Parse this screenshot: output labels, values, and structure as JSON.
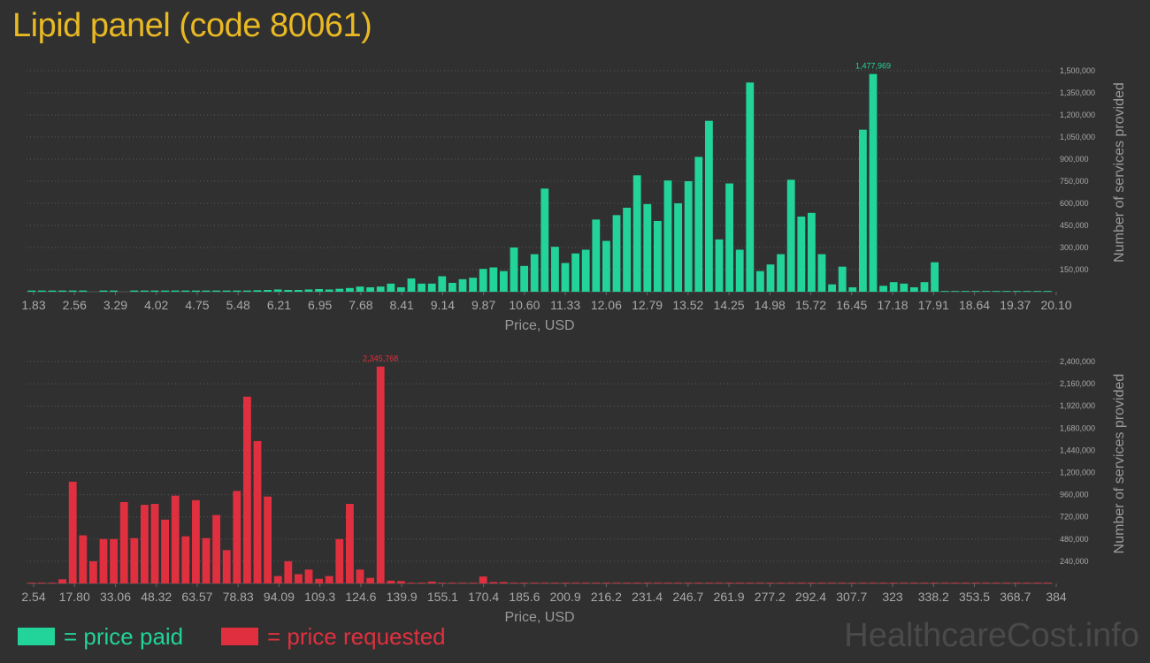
{
  "title": "Lipid panel (code 80061)",
  "brand": "HealthcareCost.info",
  "legend": [
    {
      "swatch_color": "#22d39a",
      "label": "= price paid"
    },
    {
      "swatch_color": "#e0303f",
      "label": "= price requested"
    }
  ],
  "chart_data": [
    {
      "type": "bar",
      "title": "",
      "xlabel": "Price, USD",
      "ylabel": "Number of services provided",
      "color": "#22d39a",
      "x_tick_labels": [
        "1.83",
        "2.56",
        "3.29",
        "4.02",
        "4.75",
        "5.48",
        "6.21",
        "6.95",
        "7.68",
        "8.41",
        "9.14",
        "9.87",
        "10.60",
        "11.33",
        "12.06",
        "12.79",
        "13.52",
        "14.25",
        "14.98",
        "15.72",
        "16.45",
        "17.18",
        "17.91",
        "18.64",
        "19.37",
        "20.10"
      ],
      "y_tick_labels": [
        "150,000",
        "300,000",
        "450,000",
        "600,000",
        "750,000",
        "900,000",
        "1,050,000",
        "1,200,000",
        "1,350,000",
        "1,500,000"
      ],
      "y_ticks": [
        150000,
        300000,
        450000,
        600000,
        750000,
        900000,
        1050000,
        1200000,
        1350000,
        1500000
      ],
      "ylim": [
        0,
        1500000
      ],
      "max_label": "1,477,969",
      "values": [
        8000,
        8000,
        8000,
        8000,
        8000,
        8000,
        0,
        8000,
        8000,
        0,
        8000,
        8000,
        8000,
        8000,
        8000,
        8000,
        8000,
        8000,
        8000,
        8000,
        8000,
        8000,
        10000,
        12000,
        15000,
        12000,
        12000,
        15000,
        18000,
        15000,
        20000,
        25000,
        35000,
        30000,
        35000,
        55000,
        30000,
        90000,
        55000,
        55000,
        105000,
        60000,
        85000,
        95000,
        155000,
        165000,
        140000,
        300000,
        175000,
        255000,
        700000,
        305000,
        195000,
        260000,
        285000,
        490000,
        345000,
        520000,
        570000,
        790000,
        595000,
        480000,
        755000,
        600000,
        750000,
        915000,
        1160000,
        355000,
        735000,
        285000,
        1420000,
        140000,
        185000,
        255000,
        760000,
        510000,
        535000,
        255000,
        50000,
        170000,
        30000,
        1100000,
        1477969,
        40000,
        65000,
        55000,
        30000,
        65000,
        200000,
        5000,
        5000,
        5000,
        5000,
        5000,
        5000,
        5000,
        5000,
        5000,
        5000,
        5000
      ]
    },
    {
      "type": "bar",
      "title": "",
      "xlabel": "Price, USD",
      "ylabel": "Number of services provided",
      "color": "#e0303f",
      "x_tick_labels": [
        "2.54",
        "17.80",
        "33.06",
        "48.32",
        "63.57",
        "78.83",
        "94.09",
        "109.3",
        "124.6",
        "139.9",
        "155.1",
        "170.4",
        "185.6",
        "200.9",
        "216.2",
        "231.4",
        "246.7",
        "261.9",
        "277.2",
        "292.4",
        "307.7",
        "323",
        "338.2",
        "353.5",
        "368.7",
        "384"
      ],
      "y_tick_labels": [
        "240,000",
        "480,000",
        "720,000",
        "960,000",
        "1,200,000",
        "1,440,000",
        "1,680,000",
        "1,920,000",
        "2,160,000",
        "2,400,000"
      ],
      "y_ticks": [
        240000,
        480000,
        720000,
        960000,
        1200000,
        1440000,
        1680000,
        1920000,
        2160000,
        2400000
      ],
      "ylim": [
        0,
        2400000
      ],
      "max_label": "2,345,768",
      "values": [
        8000,
        8000,
        8000,
        45000,
        1100000,
        520000,
        240000,
        480000,
        480000,
        880000,
        490000,
        850000,
        860000,
        690000,
        950000,
        510000,
        900000,
        490000,
        740000,
        360000,
        1000000,
        2020000,
        1540000,
        940000,
        80000,
        240000,
        100000,
        150000,
        50000,
        80000,
        480000,
        860000,
        150000,
        60000,
        2345768,
        30000,
        25000,
        8000,
        8000,
        20000,
        8000,
        8000,
        8000,
        8000,
        75000,
        15000,
        15000,
        8000,
        8000,
        8000,
        8000,
        8000,
        8000,
        8000,
        8000,
        8000,
        8000,
        8000,
        8000,
        8000,
        8000,
        8000,
        8000,
        8000,
        8000,
        8000,
        8000,
        8000,
        8000,
        8000,
        8000,
        8000,
        8000,
        8000,
        8000,
        8000,
        8000,
        8000,
        8000,
        8000,
        8000,
        8000,
        8000,
        8000,
        8000,
        8000,
        8000,
        8000,
        8000,
        8000,
        8000,
        8000,
        8000,
        8000,
        8000,
        8000,
        8000,
        8000,
        8000,
        8000
      ]
    }
  ]
}
